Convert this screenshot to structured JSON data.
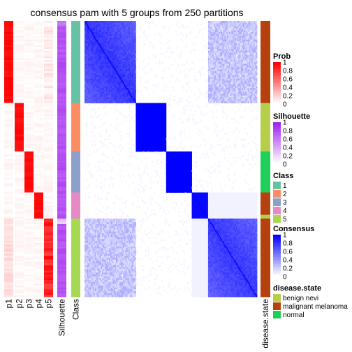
{
  "chart_data": {
    "type": "heatmap",
    "title": "consensus pam with 5 groups from 250 partitions",
    "column_labels": [
      "p1",
      "p2",
      "p3",
      "p4",
      "p5",
      "Silhouette",
      "Class"
    ],
    "right_annotation_label": "disease.state",
    "group_sizes": [
      44,
      26,
      22,
      14,
      42
    ],
    "groups": [
      {
        "class": 1,
        "disease_state": "malignant melanoma"
      },
      {
        "class": 2,
        "disease_state": "benign nevi"
      },
      {
        "class": 3,
        "disease_state": "normal"
      },
      {
        "class": 4,
        "disease_state": "malignant melanoma"
      },
      {
        "class": 5,
        "disease_state": "malignant melanoma"
      }
    ],
    "legends": {
      "prob": {
        "title": "Prob",
        "ticks": [
          "1",
          "0.8",
          "0.6",
          "0.4",
          "0.2",
          "0"
        ],
        "low": "#ffffff",
        "high": "#ff0000"
      },
      "silhouette": {
        "title": "Silhouette",
        "ticks": [
          "1",
          "0.8",
          "0.6",
          "0.4",
          "0.2",
          "0"
        ],
        "low": "#ffffff",
        "high": "#a020f0"
      },
      "class": {
        "title": "Class",
        "items": [
          {
            "label": "1",
            "color": "#66c2a5"
          },
          {
            "label": "2",
            "color": "#fc8d62"
          },
          {
            "label": "3",
            "color": "#8da0cb"
          },
          {
            "label": "4",
            "color": "#e78ac3"
          },
          {
            "label": "5",
            "color": "#a6d854"
          }
        ]
      },
      "consensus": {
        "title": "Consensus",
        "ticks": [
          "1",
          "0.8",
          "0.6",
          "0.4",
          "0.2",
          "0"
        ],
        "low": "#ffffff",
        "high": "#0000ff"
      },
      "disease_state": {
        "title": "disease.state",
        "items": [
          {
            "label": "benign nevi",
            "color": "#b5cf4b"
          },
          {
            "label": "malignant melanoma",
            "color": "#b5420e"
          },
          {
            "label": "normal",
            "color": "#1fcf5a"
          }
        ]
      }
    }
  }
}
